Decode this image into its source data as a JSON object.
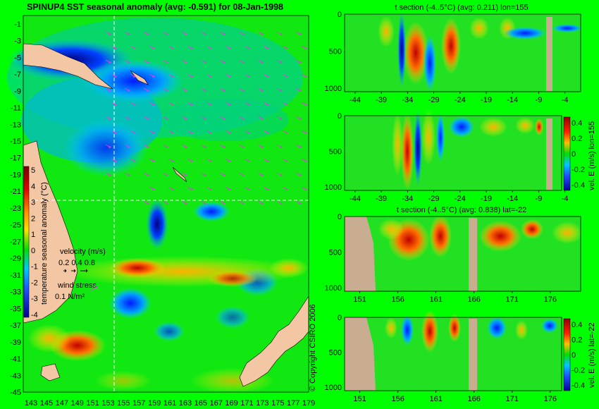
{
  "main_title": "SPINUP4 SST seasonal anomaly (avg: -0.591) for 08-Jan-1998",
  "copyright": "© Copyright CSIRO 2006",
  "map": {
    "y_ticks": [
      "-1",
      "-3",
      "-5",
      "-7",
      "-9",
      "-11",
      "-13",
      "-15",
      "-17",
      "-19",
      "-21",
      "-23",
      "-25",
      "-27",
      "-29",
      "-31",
      "-33",
      "-35",
      "-37",
      "-39",
      "-41",
      "-43",
      "-45"
    ],
    "x_ticks": [
      "143",
      "145",
      "147",
      "149",
      "151",
      "153",
      "155",
      "157",
      "159",
      "161",
      "163",
      "165",
      "167",
      "169",
      "171",
      "173",
      "175",
      "177",
      "179"
    ],
    "colorbar_label": "temperature seasonal anomaly (°C)",
    "colorbar_ticks": [
      "5",
      "4",
      "3",
      "2",
      "1",
      "0",
      "-1",
      "-2",
      "-3",
      "-4"
    ],
    "velocity_label": "velocity (m/s)",
    "velocity_ticks": "0.2 0.4 0.8",
    "wind_label": "wind stress",
    "wind_value": "0.1 N/m²",
    "crosshair_lon": 155,
    "crosshair_lat": -22
  },
  "panels": [
    {
      "title": "t section (-4..5°C) (avg: 0.211) lon=155",
      "x_ticks": [
        "-44",
        "-39",
        "-34",
        "-29",
        "-24",
        "-19",
        "-14",
        "-9",
        "-4"
      ],
      "y_ticks": [
        "0",
        "500",
        "1000"
      ]
    },
    {
      "title": "",
      "x_ticks": [
        "-44",
        "-39",
        "-34",
        "-29",
        "-24",
        "-19",
        "-14",
        "-9",
        "-4"
      ],
      "y_ticks": [
        "0",
        "500",
        "1000"
      ],
      "cbar_label": "vel. E (m/s) lon=155",
      "cbar_ticks": [
        "0.4",
        "0.2",
        "0",
        "-0.2",
        "-0.4"
      ]
    },
    {
      "title": "t section (-4..5°C) (avg: 0.838) lat=-22",
      "x_ticks": [
        "151",
        "156",
        "161",
        "166",
        "171",
        "176"
      ],
      "y_ticks": [
        "0",
        "500",
        "1000"
      ]
    },
    {
      "title": "",
      "x_ticks": [
        "151",
        "156",
        "161",
        "166",
        "171",
        "176"
      ],
      "y_ticks": [
        "0",
        "500",
        "1000"
      ],
      "cbar_label": "vel. E (m/s) lat=-22",
      "cbar_ticks": [
        "0.4",
        "0.2",
        "0",
        "-0.2",
        "-0.4"
      ]
    }
  ],
  "chart_data": [
    {
      "type": "heatmap",
      "title": "SPINUP4 SST seasonal anomaly (avg: -0.591) for 08-Jan-1998",
      "xlim": [
        143,
        180
      ],
      "ylim": [
        -45,
        0
      ],
      "colorbar_range": [
        -4,
        5
      ],
      "colorbar_label": "temperature seasonal anomaly (°C)"
    },
    {
      "type": "heatmap",
      "title": "t section (-4..5°C) (avg: 0.211) lon=155",
      "xlim": [
        -46,
        -1
      ],
      "ylim": [
        1050,
        0
      ]
    },
    {
      "type": "heatmap",
      "xlim": [
        -46,
        -1
      ],
      "ylim": [
        1050,
        0
      ],
      "colorbar_range": [
        -0.4,
        0.4
      ],
      "colorbar_label": "vel. E (m/s) lon=155"
    },
    {
      "type": "heatmap",
      "title": "t section (-4..5°C) (avg: 0.838) lat=-22",
      "xlim": [
        149,
        180
      ],
      "ylim": [
        1050,
        0
      ]
    },
    {
      "type": "heatmap",
      "xlim": [
        149,
        180
      ],
      "ylim": [
        1050,
        0
      ],
      "colorbar_range": [
        -0.4,
        0.4
      ],
      "colorbar_label": "vel. E (m/s) lat=-22"
    }
  ]
}
